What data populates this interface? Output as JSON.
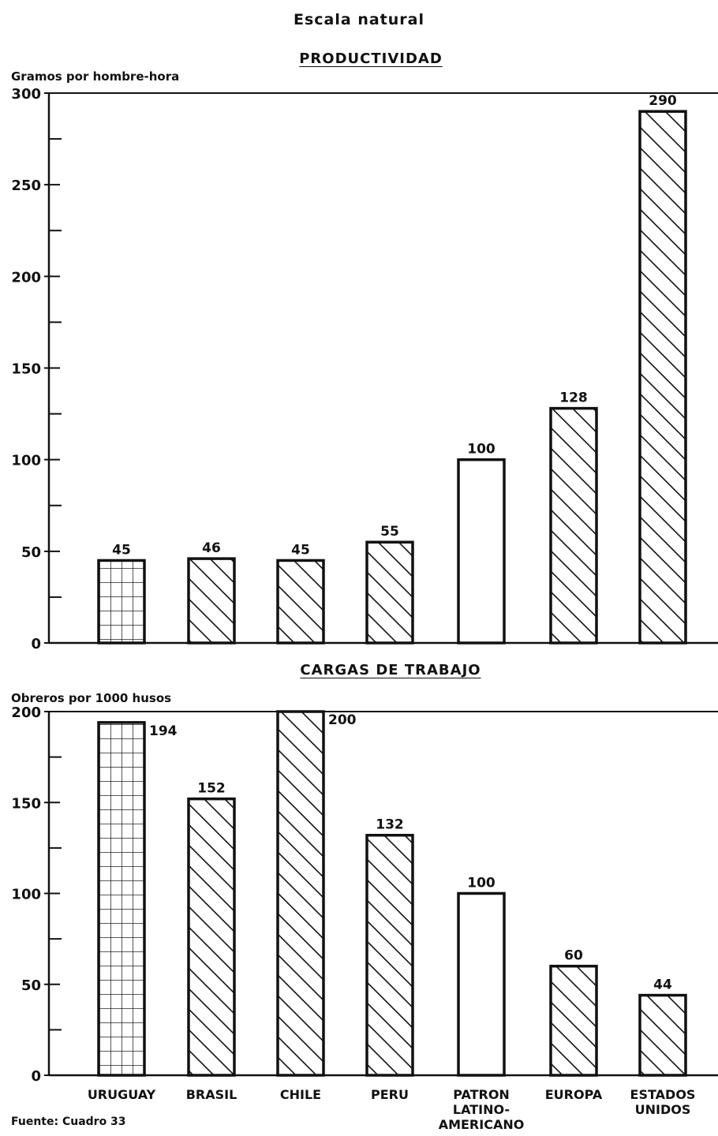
{
  "header": {
    "subtitle": "Escala natural"
  },
  "footer": {
    "source": "Fuente: Cuadro 33"
  },
  "colors": {
    "ink": "#111111",
    "background": "#ffffff"
  },
  "chart_data": [
    {
      "type": "bar",
      "title": "PRODUCTIVIDAD",
      "ylabel": "Gramos por hombre-hora",
      "xlabel": "",
      "ylim": [
        0,
        300
      ],
      "yticks_labeled": [
        0,
        50,
        100,
        150,
        200,
        250,
        300
      ],
      "yticks_minor": [
        25,
        75,
        125,
        175,
        225,
        275
      ],
      "grid": false,
      "categories": [
        "URUGUAY",
        "BRASIL",
        "CHILE",
        "PERU",
        "PATRON LATINO-AMERICANO",
        "EUROPA",
        "ESTADOS UNIDOS"
      ],
      "values": [
        45,
        46,
        45,
        55,
        100,
        128,
        290
      ],
      "data_labels": [
        "45",
        "46",
        "45",
        "55",
        "100",
        "128",
        "290"
      ],
      "patterns": [
        "grid",
        "diagonal",
        "diagonal",
        "diagonal",
        "none",
        "diagonal",
        "diagonal"
      ]
    },
    {
      "type": "bar",
      "title": "CARGAS DE TRABAJO",
      "ylabel": "Obreros por 1000 husos",
      "xlabel": "",
      "ylim": [
        0,
        200
      ],
      "yticks_labeled": [
        0,
        50,
        100,
        150,
        200
      ],
      "yticks_minor": [
        25,
        75,
        125,
        175
      ],
      "grid": false,
      "categories": [
        "URUGUAY",
        "BRASIL",
        "CHILE",
        "PERU",
        "PATRON LATINO-AMERICANO",
        "EUROPA",
        "ESTADOS UNIDOS"
      ],
      "category_labels": [
        [
          "URUGUAY"
        ],
        [
          "BRASIL"
        ],
        [
          "CHILE"
        ],
        [
          "PERU"
        ],
        [
          "PATRON",
          "LATINO-",
          "AMERICANO"
        ],
        [
          "EUROPA"
        ],
        [
          "ESTADOS",
          "UNIDOS"
        ]
      ],
      "values": [
        194,
        152,
        200,
        132,
        100,
        60,
        44
      ],
      "data_labels": [
        "194",
        "152",
        "200",
        "132",
        "100",
        "60",
        "44"
      ],
      "label_positions": [
        "right",
        "top",
        "right",
        "top",
        "top",
        "top",
        "top"
      ],
      "patterns": [
        "grid",
        "diagonal",
        "diagonal",
        "diagonal",
        "none",
        "diagonal",
        "diagonal"
      ]
    }
  ]
}
